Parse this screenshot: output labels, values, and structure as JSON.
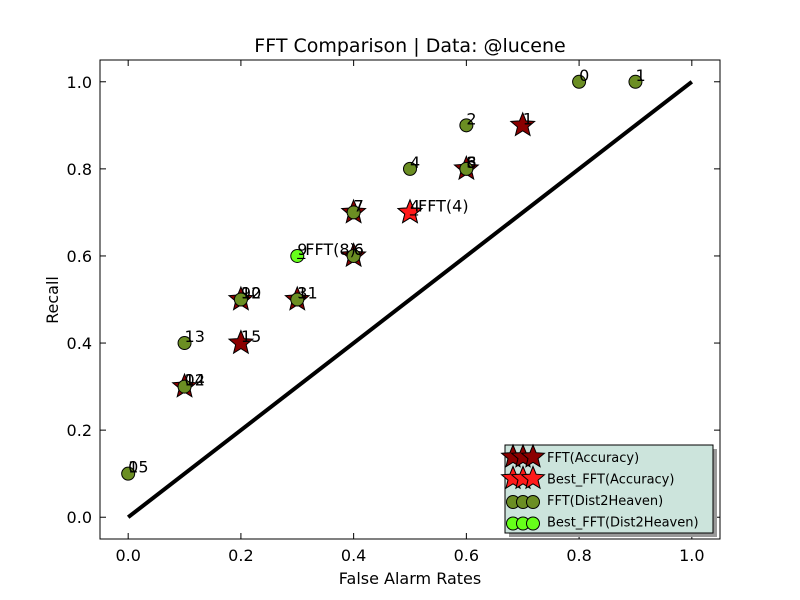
{
  "chart_data": {
    "type": "scatter",
    "title": "FFT Comparison |  Data: @lucene",
    "xlabel": "False Alarm Rates",
    "ylabel": "Recall",
    "xlim": [
      -0.05,
      1.05
    ],
    "ylim": [
      -0.05,
      1.05
    ],
    "xticks": [
      "0.0",
      "0.2",
      "0.4",
      "0.6",
      "0.8",
      "1.0"
    ],
    "yticks": [
      "0.0",
      "0.2",
      "0.4",
      "0.6",
      "0.8",
      "1.0"
    ],
    "grid": false,
    "legend_position": "bottom-right",
    "diagonal": {
      "x": [
        0,
        1
      ],
      "y": [
        0,
        1
      ],
      "color": "#000000"
    },
    "series": [
      {
        "name": "FFT(Accuracy)",
        "marker": "star",
        "color": "#8b0000",
        "points": [
          {
            "x": 0.7,
            "y": 0.9,
            "label": "1"
          },
          {
            "x": 0.6,
            "y": 0.8,
            "label": "3"
          },
          {
            "x": 0.5,
            "y": 0.7,
            "label": "4"
          },
          {
            "x": 0.4,
            "y": 0.7,
            "label": "7"
          },
          {
            "x": 0.4,
            "y": 0.6,
            "label": "6"
          },
          {
            "x": 0.3,
            "y": 0.5,
            "label": "11"
          },
          {
            "x": 0.2,
            "y": 0.5,
            "label": "10"
          },
          {
            "x": 0.2,
            "y": 0.4,
            "label": "15"
          },
          {
            "x": 0.1,
            "y": 0.3,
            "label": "12"
          }
        ]
      },
      {
        "name": "Best_FFT(Accuracy)",
        "marker": "star",
        "color": "#ff1a1a",
        "points": [
          {
            "x": 0.5,
            "y": 0.7,
            "label": "_FFT(4)"
          }
        ]
      },
      {
        "name": "FFT(Dist2Heaven)",
        "marker": "circle",
        "color": "#6b8e23",
        "points": [
          {
            "x": 0.8,
            "y": 1.0,
            "label": "0"
          },
          {
            "x": 0.9,
            "y": 1.0,
            "label": "1"
          },
          {
            "x": 0.6,
            "y": 0.9,
            "label": "2"
          },
          {
            "x": 0.5,
            "y": 0.8,
            "label": "4"
          },
          {
            "x": 0.6,
            "y": 0.8,
            "label": "6"
          },
          {
            "x": 0.4,
            "y": 0.7,
            "label": "7"
          },
          {
            "x": 0.4,
            "y": 0.6,
            "label": "6"
          },
          {
            "x": 0.2,
            "y": 0.5,
            "label": "12"
          },
          {
            "x": 0.3,
            "y": 0.5,
            "label": "3"
          },
          {
            "x": 0.1,
            "y": 0.4,
            "label": "13"
          },
          {
            "x": 0.1,
            "y": 0.3,
            "label": "14"
          },
          {
            "x": 0.0,
            "y": 0.1,
            "label": "15"
          }
        ]
      },
      {
        "name": "Best_FFT(Dist2Heaven)",
        "marker": "circle",
        "color": "#66ff1a",
        "points": [
          {
            "x": 0.3,
            "y": 0.6,
            "label": "_FFT(8)"
          }
        ]
      }
    ],
    "stacked_labels": [
      {
        "x": 0.6,
        "y": 0.8,
        "text": "8"
      },
      {
        "x": 0.3,
        "y": 0.6,
        "text": "9"
      },
      {
        "x": 0.2,
        "y": 0.5,
        "text": "9"
      },
      {
        "x": 0.1,
        "y": 0.3,
        "text": "0"
      },
      {
        "x": 0.0,
        "y": 0.1,
        "text": "0"
      }
    ]
  }
}
